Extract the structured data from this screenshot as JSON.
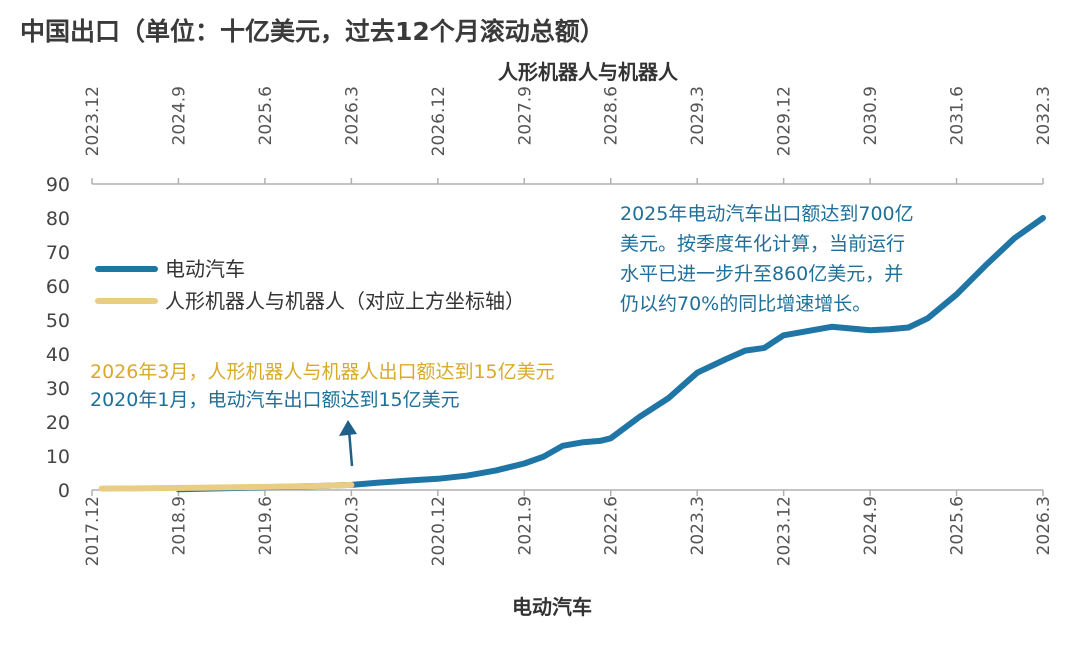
{
  "title": "中国出口（单位：十亿美元，过去12个月滚动总额）",
  "colors": {
    "ev": "#1f75a6",
    "robot": "#e8cd82",
    "robot_anno": "#d9aa2a",
    "ev_anno": "#1f6f99",
    "arrow": "#1f5f88",
    "axis": "#b0b0b0"
  },
  "chart_data": {
    "type": "line",
    "ylim": [
      0,
      90
    ],
    "yticks": [
      0,
      10,
      20,
      30,
      40,
      50,
      60,
      70,
      80,
      90
    ],
    "bottom_axis": {
      "label": "电动汽车",
      "ticks": [
        "2017.12",
        "2018.9",
        "2019.6",
        "2020.3",
        "2020.12",
        "2021.9",
        "2022.6",
        "2023.3",
        "2023.12",
        "2024.9",
        "2025.6",
        "2026.3"
      ]
    },
    "top_axis": {
      "label": "人形机器人与机器人",
      "ticks": [
        "2023.12",
        "2024.9",
        "2025.6",
        "2026.3",
        "2026.12",
        "2027.9",
        "2028.6",
        "2029.3",
        "2029.12",
        "2030.9",
        "2031.6",
        "2032.3"
      ]
    },
    "series": [
      {
        "name": "电动汽车",
        "axis": "bottom",
        "x": [
          "2018.9",
          "2019.3",
          "2019.6",
          "2019.9",
          "2019.12",
          "2020.3",
          "2020.6",
          "2020.9",
          "2020.12",
          "2021.3",
          "2021.6",
          "2021.9",
          "2021.11",
          "2022.1",
          "2022.3",
          "2022.5",
          "2022.6",
          "2022.9",
          "2022.12",
          "2023.3",
          "2023.6",
          "2023.8",
          "2023.10",
          "2023.12",
          "2024.2",
          "2024.5",
          "2024.9",
          "2024.11",
          "2025.1",
          "2025.3",
          "2025.6",
          "2025.9",
          "2025.12",
          "2026.3"
        ],
        "values": [
          0.2,
          0.6,
          0.8,
          1.0,
          1.2,
          1.5,
          2.2,
          2.8,
          3.3,
          4.2,
          5.7,
          7.8,
          9.8,
          13.0,
          14.0,
          14.5,
          15.2,
          21.5,
          27.0,
          34.5,
          38.5,
          41.0,
          41.8,
          45.5,
          46.5,
          48.0,
          47.0,
          47.3,
          47.8,
          50.5,
          57.5,
          66.0,
          74.0,
          80.0
        ]
      },
      {
        "name": "人形机器人与机器人（对应上方坐标轴）",
        "axis": "top",
        "x": [
          "2024.1",
          "2024.6",
          "2024.12",
          "2025.6",
          "2025.12",
          "2026.3"
        ],
        "values": [
          0.4,
          0.5,
          0.7,
          0.9,
          1.2,
          1.5
        ]
      }
    ],
    "annotations": {
      "robot": "2026年3月，人形机器人与机器人出口额达到15亿美元",
      "ev_2020": "2020年1月，电动汽车出口额达到15亿美元",
      "ev_2025": [
        "2025年电动汽车出口额达到700亿",
        "美元。按季度年化计算，当前运行",
        "水平已进一步升至860亿美元，并",
        "仍以约70%的同比增速增长。"
      ]
    },
    "legend_position": "left"
  }
}
